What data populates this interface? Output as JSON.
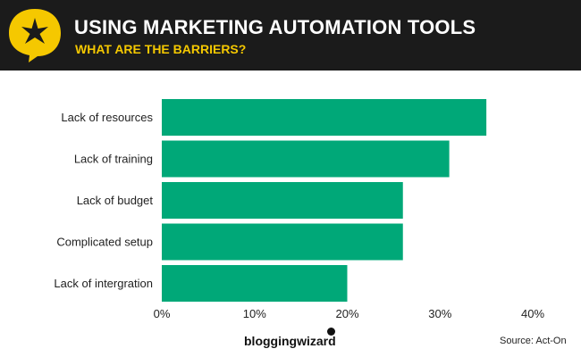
{
  "header": {
    "title": "USING MARKETING AUTOMATION TOOLS",
    "subtitle": "WHAT ARE THE BARRIERS?",
    "logo_icon": "star-speech-bubble-icon",
    "colors": {
      "background": "#1b1b1b",
      "title": "#ffffff",
      "subtitle": "#f5c800",
      "logo": "#f5c800"
    }
  },
  "chart_data": {
    "type": "bar",
    "orientation": "horizontal",
    "categories": [
      "Lack of resources",
      "Lack of training",
      "Lack of budget",
      "Complicated setup",
      "Lack of intergration"
    ],
    "values": [
      35,
      31,
      26,
      26,
      20
    ],
    "x_ticks": [
      "0%",
      "10%",
      "20%",
      "30%",
      "40%"
    ],
    "xlim": [
      0,
      40
    ],
    "grid": false,
    "bar_color": "#00a878"
  },
  "footer": {
    "brand": "bloggingwizard",
    "source": "Source: Act-On"
  }
}
